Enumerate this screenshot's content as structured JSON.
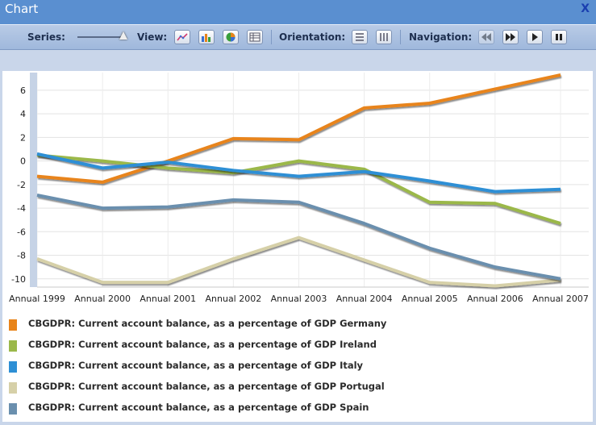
{
  "window": {
    "title": "Chart",
    "close_label": "X"
  },
  "toolbar": {
    "series_label": "Series:",
    "view_label": "View:",
    "orientation_label": "Orientation:",
    "navigation_label": "Navigation:"
  },
  "chart_data": {
    "type": "line",
    "categories": [
      "Annual 1999",
      "Annual 2000",
      "Annual 2001",
      "Annual 2002",
      "Annual 2003",
      "Annual 2004",
      "Annual 2005",
      "Annual 2006",
      "Annual 2007"
    ],
    "ylim": [
      -10.7,
      7.5
    ],
    "yticks": [
      6,
      4,
      2,
      0,
      -2,
      -4,
      -6,
      -8,
      -10
    ],
    "grid": true,
    "legend_position": "bottom",
    "series": [
      {
        "name": "CBGDPR: Current account balance, as a percentage of GDP Germany",
        "color": "#e8841a",
        "values": [
          -1.3,
          -1.8,
          0.0,
          1.9,
          1.8,
          4.5,
          4.9,
          6.1,
          7.3
        ]
      },
      {
        "name": "CBGDPR: Current account balance, as a percentage of GDP Ireland",
        "color": "#9bb84a",
        "values": [
          0.5,
          0.0,
          -0.6,
          -1.0,
          0.0,
          -0.7,
          -3.5,
          -3.6,
          -5.3
        ]
      },
      {
        "name": "CBGDPR: Current account balance, as a percentage of GDP Italy",
        "color": "#2d8fd5",
        "values": [
          0.6,
          -0.6,
          -0.1,
          -0.8,
          -1.3,
          -0.9,
          -1.7,
          -2.6,
          -2.4
        ]
      },
      {
        "name": "CBGDPR: Current account balance, as a percentage of GDP Portugal",
        "color": "#d6d0a8",
        "values": [
          -8.3,
          -10.3,
          -10.3,
          -8.3,
          -6.5,
          -8.4,
          -10.3,
          -10.6,
          -10.1
        ]
      },
      {
        "name": "CBGDPR: Current account balance, as a percentage of GDP Spain",
        "color": "#6a8fae",
        "values": [
          -2.9,
          -4.0,
          -3.9,
          -3.3,
          -3.5,
          -5.3,
          -7.4,
          -9.0,
          -10.0
        ]
      }
    ]
  }
}
